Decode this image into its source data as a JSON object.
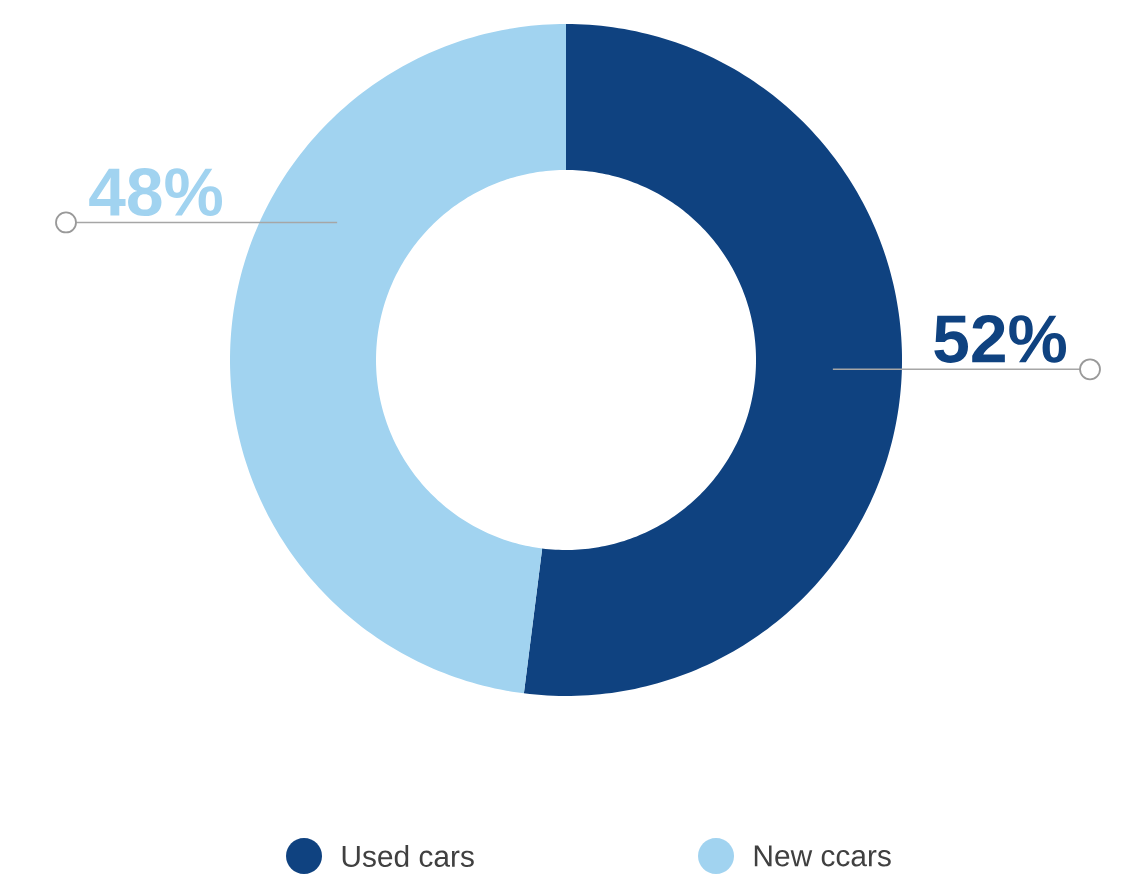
{
  "chart_data": {
    "type": "donut",
    "categories": [
      "Used cars",
      "New ccars"
    ],
    "values": [
      52,
      48
    ],
    "colors": [
      "#0f4280",
      "#a1d3f0"
    ],
    "value_labels": [
      "52%",
      "48%"
    ],
    "legend": "bottom"
  }
}
